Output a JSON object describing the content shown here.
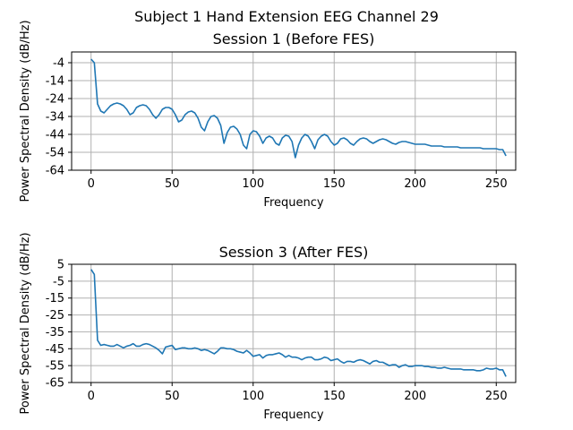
{
  "figure_title": "Subject 1 Hand Extension EEG Channel 29",
  "colors": {
    "series": "#1f77b4",
    "grid": "#b0b0b0"
  },
  "chart_data": [
    {
      "type": "line",
      "title": "Session 1 (Before FES)",
      "xlabel": "Frequency",
      "ylabel": "Power Spectral Density (dB/Hz)",
      "xlim": [
        -12,
        262
      ],
      "ylim": [
        -64,
        2
      ],
      "xticks": [
        0,
        50,
        100,
        150,
        200,
        250
      ],
      "yticks": [
        -4,
        -14,
        -24,
        -34,
        -44,
        -54,
        -64
      ],
      "grid": true,
      "series": [
        {
          "x": [
            0,
            2,
            4,
            6,
            8,
            10,
            12,
            14,
            16,
            18,
            20,
            22,
            24,
            26,
            28,
            30,
            32,
            34,
            36,
            38,
            40,
            42,
            44,
            46,
            48,
            50,
            52,
            54,
            56,
            58,
            60,
            62,
            64,
            66,
            68,
            70,
            72,
            74,
            76,
            78,
            80,
            82,
            84,
            86,
            88,
            90,
            92,
            94,
            96,
            98,
            100,
            102,
            104,
            106,
            108,
            110,
            112,
            114,
            116,
            118,
            120,
            122,
            124,
            126,
            128,
            130,
            132,
            134,
            136,
            138,
            140,
            142,
            144,
            146,
            148,
            150,
            152,
            154,
            156,
            158,
            160,
            162,
            164,
            166,
            168,
            170,
            172,
            174,
            176,
            178,
            180,
            182,
            184,
            186,
            188,
            190,
            192,
            194,
            196,
            198,
            200,
            202,
            204,
            206,
            208,
            210,
            212,
            214,
            216,
            218,
            220,
            222,
            224,
            226,
            228,
            230,
            232,
            234,
            236,
            238,
            240,
            242,
            244,
            246,
            248,
            250,
            252,
            254,
            256
          ],
          "y": [
            -2,
            -4,
            -27,
            -31,
            -32,
            -30,
            -28,
            -27,
            -26.5,
            -27,
            -28,
            -30,
            -33,
            -32,
            -29,
            -28,
            -27.5,
            -28,
            -30,
            -33,
            -35,
            -33,
            -30,
            -29,
            -29,
            -30,
            -33,
            -37,
            -36,
            -33,
            -31.5,
            -31,
            -32,
            -35,
            -40,
            -42,
            -37,
            -34,
            -33.5,
            -35,
            -39,
            -49,
            -43,
            -40,
            -39.5,
            -41,
            -44,
            -50,
            -52,
            -44,
            -42,
            -42.5,
            -45,
            -49,
            -46,
            -45,
            -46,
            -49,
            -50,
            -46,
            -44.5,
            -45,
            -48,
            -57,
            -50,
            -46,
            -44,
            -45,
            -48,
            -52,
            -47,
            -45,
            -44,
            -45,
            -48,
            -50,
            -49,
            -46.5,
            -46,
            -47,
            -49,
            -50,
            -48,
            -46.5,
            -46,
            -46.5,
            -48,
            -49,
            -48,
            -47,
            -46.5,
            -47,
            -48,
            -49,
            -49.5,
            -48.5,
            -48,
            -48,
            -48.5,
            -49,
            -49.5,
            -49.5,
            -49.5,
            -49.5,
            -50,
            -50.5,
            -50.5,
            -50.5,
            -50.5,
            -51,
            -51,
            -51,
            -51,
            -51,
            -51.5,
            -51.5,
            -51.5,
            -51.5,
            -51.5,
            -51.5,
            -51.5,
            -52,
            -52,
            -52,
            -52,
            -52,
            -52.5,
            -52.5,
            -56
          ]
        }
      ]
    },
    {
      "type": "line",
      "title": "Session 3 (After FES)",
      "xlabel": "Frequency",
      "ylabel": "Power Spectral Density (dB/Hz)",
      "xlim": [
        -12,
        262
      ],
      "ylim": [
        -65,
        5
      ],
      "xticks": [
        0,
        50,
        100,
        150,
        200,
        250
      ],
      "yticks": [
        5,
        -5,
        -15,
        -25,
        -35,
        -45,
        -55,
        -65
      ],
      "grid": true,
      "series": [
        {
          "x": [
            0,
            2,
            4,
            6,
            8,
            10,
            12,
            14,
            16,
            18,
            20,
            22,
            24,
            26,
            28,
            30,
            32,
            34,
            36,
            38,
            40,
            42,
            44,
            46,
            48,
            50,
            52,
            54,
            56,
            58,
            60,
            62,
            64,
            66,
            68,
            70,
            72,
            74,
            76,
            78,
            80,
            82,
            84,
            86,
            88,
            90,
            92,
            94,
            96,
            98,
            100,
            102,
            104,
            106,
            108,
            110,
            112,
            114,
            116,
            118,
            120,
            122,
            124,
            126,
            128,
            130,
            132,
            134,
            136,
            138,
            140,
            142,
            144,
            146,
            148,
            150,
            152,
            154,
            156,
            158,
            160,
            162,
            164,
            166,
            168,
            170,
            172,
            174,
            176,
            178,
            180,
            182,
            184,
            186,
            188,
            190,
            192,
            194,
            196,
            198,
            200,
            202,
            204,
            206,
            208,
            210,
            212,
            214,
            216,
            218,
            220,
            222,
            224,
            226,
            228,
            230,
            232,
            234,
            236,
            238,
            240,
            242,
            244,
            246,
            248,
            250,
            252,
            254,
            256
          ],
          "y": [
            2,
            -1,
            -40,
            -43,
            -42.5,
            -43,
            -43.5,
            -43.5,
            -42.5,
            -43.5,
            -44.5,
            -43.5,
            -43,
            -42,
            -43.5,
            -43.5,
            -42.5,
            -42,
            -42.5,
            -43.5,
            -44.5,
            -46,
            -48,
            -44,
            -43.5,
            -43,
            -45.5,
            -45,
            -44.5,
            -44.5,
            -45,
            -45,
            -44.5,
            -45,
            -46,
            -45.5,
            -46,
            -47,
            -48,
            -46.5,
            -44.5,
            -44.5,
            -45,
            -45,
            -45.5,
            -46.5,
            -47,
            -47.5,
            -46,
            -47.5,
            -49.5,
            -49,
            -48.5,
            -50.5,
            -49,
            -48.5,
            -48.5,
            -48,
            -47.5,
            -48.5,
            -50,
            -49,
            -50,
            -50,
            -50.5,
            -51.5,
            -50.5,
            -50,
            -50,
            -51.5,
            -51.5,
            -51,
            -50,
            -50.5,
            -52,
            -51.5,
            -51,
            -52.5,
            -53.5,
            -52.5,
            -52.5,
            -53,
            -52,
            -51.5,
            -52,
            -53,
            -54,
            -52.5,
            -52,
            -53,
            -53,
            -54,
            -55,
            -54.5,
            -54.5,
            -56,
            -55,
            -54.5,
            -55.5,
            -55.5,
            -55,
            -55,
            -55,
            -55.5,
            -55.5,
            -56,
            -56,
            -56.5,
            -56.5,
            -56,
            -56.5,
            -57,
            -57,
            -57,
            -57,
            -57.5,
            -57.5,
            -57.5,
            -57.5,
            -58,
            -58,
            -57.5,
            -56.5,
            -57,
            -57,
            -56.5,
            -57.5,
            -57.5,
            -61.5
          ]
        }
      ]
    }
  ]
}
